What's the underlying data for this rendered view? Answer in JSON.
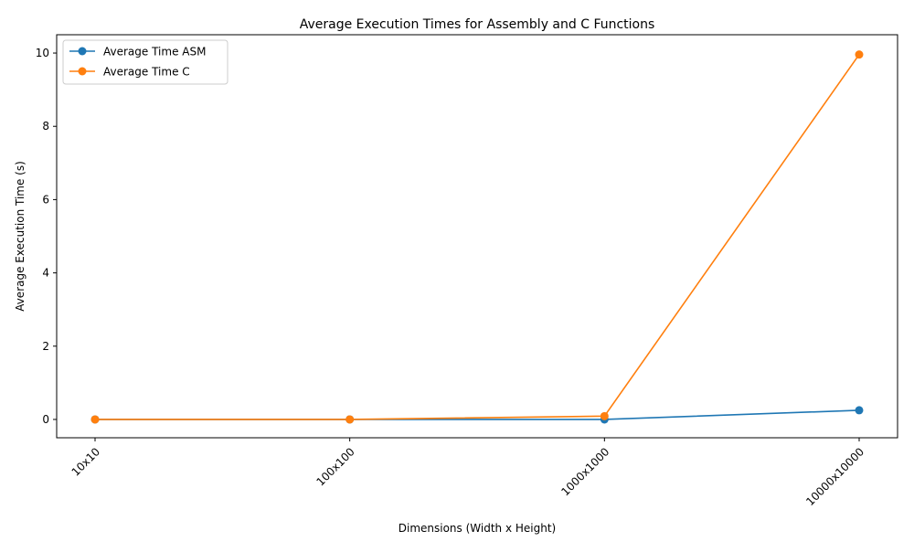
{
  "chart_data": {
    "type": "line",
    "title": "Average Execution Times for Assembly and C Functions",
    "xlabel": "Dimensions (Width x Height)",
    "ylabel": "Average Execution Time (s)",
    "categories": [
      "10x10",
      "100x100",
      "1000x1000",
      "10000x10000"
    ],
    "ylim": [
      -0.5,
      10.5
    ],
    "yticks": [
      0,
      2,
      4,
      6,
      8,
      10
    ],
    "grid": false,
    "legend_position": "upper-left",
    "series": [
      {
        "name": "Average Time ASM",
        "color": "#1f77b4",
        "values": [
          0.0,
          0.0,
          0.0,
          0.25
        ]
      },
      {
        "name": "Average Time C",
        "color": "#ff7f0e",
        "values": [
          0.0,
          0.0,
          0.09,
          9.96
        ]
      }
    ]
  }
}
